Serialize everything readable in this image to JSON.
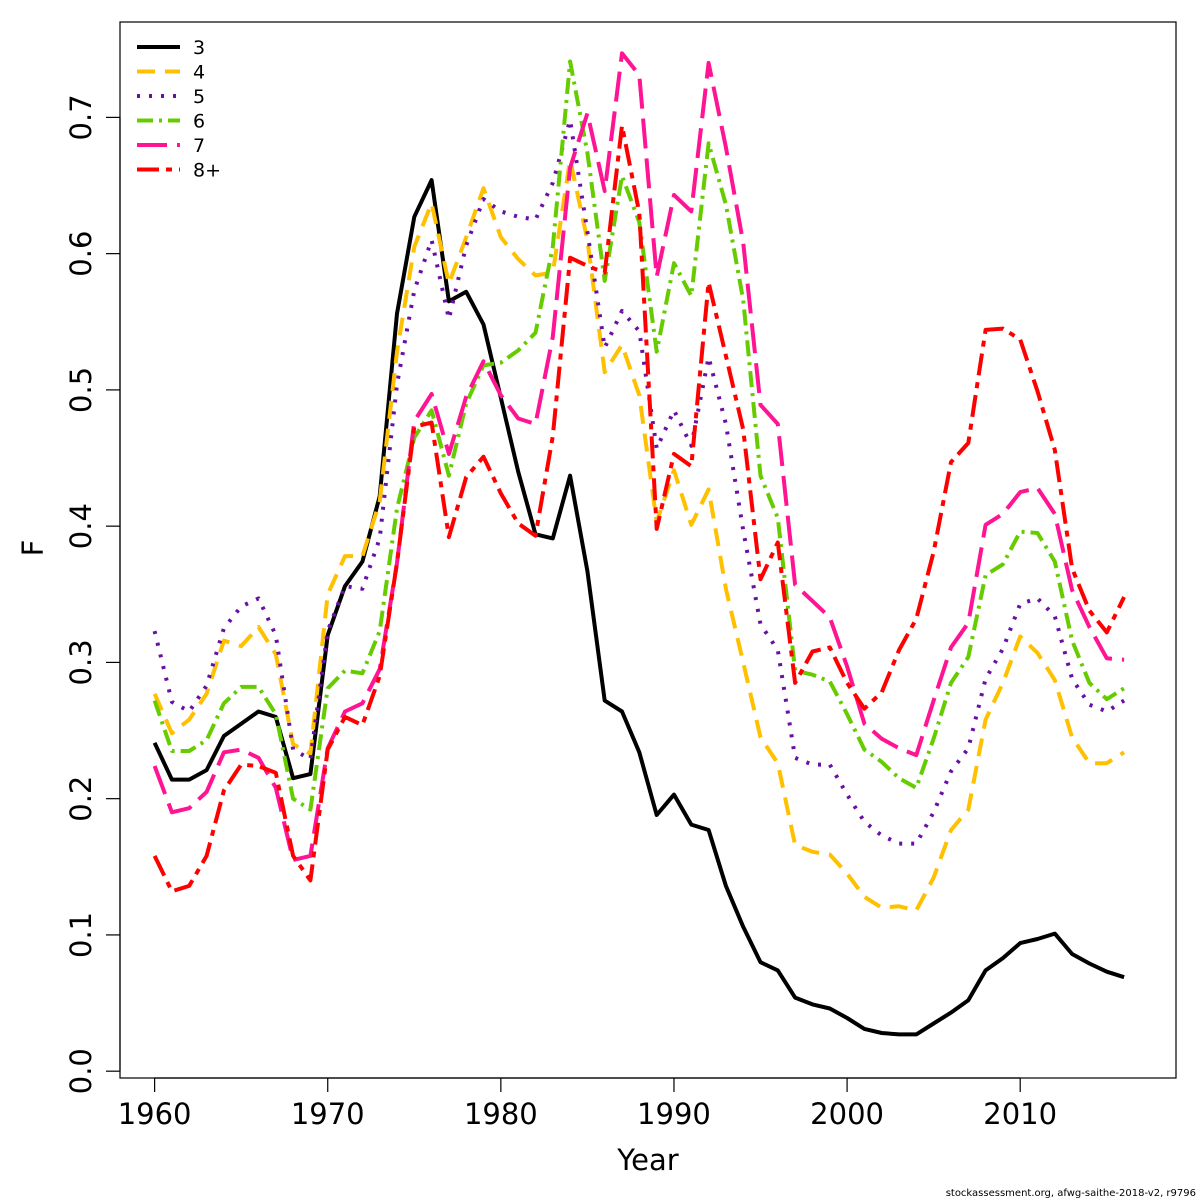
{
  "chart_data": {
    "type": "line",
    "xlabel": "Year",
    "ylabel": "F",
    "xlim": [
      1958,
      2019
    ],
    "ylim": [
      -0.005,
      0.77
    ],
    "xticks": [
      "1960",
      "1970",
      "1980",
      "1990",
      "2000",
      "2010"
    ],
    "yticks": [
      "0.0",
      "0.1",
      "0.2",
      "0.3",
      "0.4",
      "0.5",
      "0.6",
      "0.7"
    ],
    "legend_position": "top-left",
    "x": [
      1960,
      1961,
      1962,
      1963,
      1964,
      1965,
      1966,
      1967,
      1968,
      1969,
      1970,
      1971,
      1972,
      1973,
      1974,
      1975,
      1976,
      1977,
      1978,
      1979,
      1980,
      1981,
      1982,
      1983,
      1984,
      1985,
      1986,
      1987,
      1988,
      1989,
      1990,
      1991,
      1992,
      1993,
      1994,
      1995,
      1996,
      1997,
      1998,
      1999,
      2000,
      2001,
      2002,
      2003,
      2004,
      2005,
      2006,
      2007,
      2008,
      2009,
      2010,
      2011,
      2012,
      2013,
      2014,
      2015,
      2016
    ],
    "series": [
      {
        "name": "3",
        "color": "#000000",
        "dash": "",
        "values": [
          0.241,
          0.214,
          0.214,
          0.221,
          0.246,
          0.255,
          0.264,
          0.26,
          0.215,
          0.218,
          0.32,
          0.356,
          0.374,
          0.422,
          0.556,
          0.627,
          0.654,
          0.565,
          0.572,
          0.548,
          0.494,
          0.44,
          0.394,
          0.391,
          0.437,
          0.367,
          0.272,
          0.264,
          0.234,
          0.188,
          0.203,
          0.181,
          0.177,
          0.136,
          0.106,
          0.08,
          0.074,
          0.054,
          0.049,
          0.046,
          0.039,
          0.031,
          0.028,
          0.027,
          0.027,
          0.035,
          0.043,
          0.052,
          0.074,
          0.083,
          0.094,
          0.097,
          0.101,
          0.086,
          0.079,
          0.073,
          0.069
        ]
      },
      {
        "name": "4",
        "color": "#ffc000",
        "dash": "18,10",
        "values": [
          0.277,
          0.248,
          0.258,
          0.277,
          0.316,
          0.312,
          0.326,
          0.306,
          0.24,
          0.233,
          0.35,
          0.378,
          0.378,
          0.418,
          0.528,
          0.605,
          0.637,
          0.578,
          0.612,
          0.648,
          0.612,
          0.596,
          0.584,
          0.586,
          0.669,
          0.61,
          0.513,
          0.533,
          0.496,
          0.403,
          0.441,
          0.401,
          0.427,
          0.354,
          0.3,
          0.245,
          0.226,
          0.166,
          0.161,
          0.159,
          0.145,
          0.128,
          0.12,
          0.121,
          0.118,
          0.142,
          0.177,
          0.192,
          0.258,
          0.285,
          0.319,
          0.307,
          0.287,
          0.245,
          0.226,
          0.226,
          0.234
        ]
      },
      {
        "name": "5",
        "color": "#6a0fa5",
        "dash": "3,9",
        "values": [
          0.323,
          0.271,
          0.264,
          0.283,
          0.325,
          0.341,
          0.347,
          0.32,
          0.236,
          0.229,
          0.323,
          0.356,
          0.354,
          0.391,
          0.504,
          0.573,
          0.61,
          0.552,
          0.606,
          0.64,
          0.631,
          0.627,
          0.625,
          0.652,
          0.698,
          0.616,
          0.531,
          0.558,
          0.543,
          0.457,
          0.485,
          0.459,
          0.524,
          0.475,
          0.397,
          0.328,
          0.309,
          0.23,
          0.225,
          0.225,
          0.203,
          0.183,
          0.173,
          0.167,
          0.167,
          0.19,
          0.22,
          0.237,
          0.288,
          0.31,
          0.343,
          0.347,
          0.334,
          0.288,
          0.269,
          0.264,
          0.272
        ]
      },
      {
        "name": "6",
        "color": "#66cc00",
        "dash": "16,6,3,6",
        "values": [
          0.272,
          0.235,
          0.235,
          0.243,
          0.27,
          0.282,
          0.282,
          0.262,
          0.2,
          0.192,
          0.281,
          0.294,
          0.292,
          0.323,
          0.413,
          0.465,
          0.485,
          0.437,
          0.49,
          0.518,
          0.52,
          0.529,
          0.542,
          0.605,
          0.741,
          0.674,
          0.58,
          0.657,
          0.623,
          0.528,
          0.593,
          0.569,
          0.681,
          0.636,
          0.566,
          0.437,
          0.406,
          0.294,
          0.291,
          0.286,
          0.262,
          0.236,
          0.227,
          0.215,
          0.208,
          0.244,
          0.285,
          0.304,
          0.364,
          0.372,
          0.396,
          0.395,
          0.374,
          0.316,
          0.285,
          0.273,
          0.281
        ]
      },
      {
        "name": "7",
        "color": "#ff1493",
        "dash": "30,10",
        "values": [
          0.224,
          0.19,
          0.193,
          0.205,
          0.234,
          0.236,
          0.23,
          0.208,
          0.155,
          0.158,
          0.237,
          0.264,
          0.27,
          0.295,
          0.373,
          0.477,
          0.497,
          0.453,
          0.495,
          0.521,
          0.496,
          0.479,
          0.475,
          0.539,
          0.663,
          0.703,
          0.646,
          0.747,
          0.731,
          0.583,
          0.643,
          0.631,
          0.74,
          0.678,
          0.608,
          0.489,
          0.475,
          0.357,
          0.345,
          0.333,
          0.297,
          0.255,
          0.244,
          0.237,
          0.232,
          0.272,
          0.311,
          0.329,
          0.401,
          0.409,
          0.425,
          0.428,
          0.409,
          0.353,
          0.326,
          0.303,
          0.302
        ]
      },
      {
        "name": "8+",
        "color": "#ff0000",
        "dash": "22,7,6,7",
        "values": [
          0.158,
          0.132,
          0.136,
          0.158,
          0.206,
          0.225,
          0.224,
          0.219,
          0.158,
          0.14,
          0.236,
          0.26,
          0.254,
          0.29,
          0.373,
          0.473,
          0.476,
          0.392,
          0.436,
          0.451,
          0.424,
          0.402,
          0.393,
          0.466,
          0.597,
          0.591,
          0.586,
          0.694,
          0.63,
          0.398,
          0.453,
          0.444,
          0.579,
          0.525,
          0.471,
          0.361,
          0.388,
          0.285,
          0.308,
          0.311,
          0.285,
          0.266,
          0.278,
          0.309,
          0.332,
          0.381,
          0.447,
          0.461,
          0.544,
          0.545,
          0.537,
          0.499,
          0.456,
          0.369,
          0.338,
          0.322,
          0.348
        ]
      }
    ]
  },
  "footnote": "stockassessment.org, afwg-saithe-2018-v2, r9796"
}
